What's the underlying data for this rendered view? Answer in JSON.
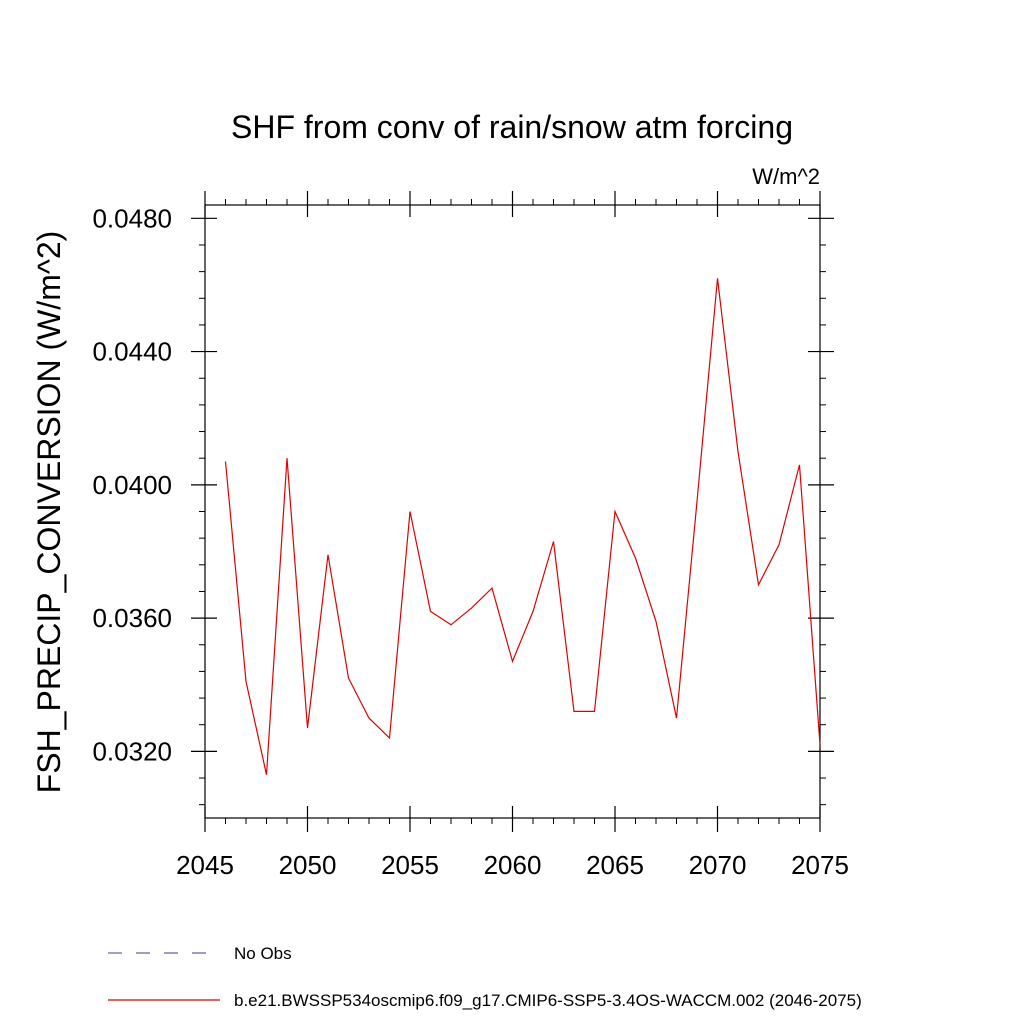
{
  "chart_data": {
    "type": "line",
    "title": "SHF from conv of rain/snow atm forcing",
    "units_label": "W/m^2",
    "xlabel": "",
    "ylabel": "FSH_PRECIP_CONVERSION  (W/m^2)",
    "xlim": [
      2045,
      2075
    ],
    "ylim": [
      0.03,
      0.0484
    ],
    "x_ticks": [
      2045,
      2050,
      2055,
      2060,
      2065,
      2070,
      2075
    ],
    "x_tick_labels": [
      "2045",
      "2050",
      "2055",
      "2060",
      "2065",
      "2070",
      "2075"
    ],
    "y_ticks": [
      0.032,
      0.036,
      0.04,
      0.044,
      0.048
    ],
    "y_tick_labels": [
      "0.0320",
      "0.0360",
      "0.0400",
      "0.0440",
      "0.0480"
    ],
    "grid": false,
    "legend_position": "bottom",
    "series": [
      {
        "name": "No Obs",
        "color": "#6b5ca5",
        "dash": "dashed",
        "x": [],
        "values": []
      },
      {
        "name": "b.e21.BWSSP534oscmip6.f09_g17.CMIP6-SSP5-3.4OS-WACCM.002 (2046-2075)",
        "color": "#e00000",
        "dash": "solid",
        "x": [
          2046,
          2047,
          2048,
          2049,
          2050,
          2051,
          2052,
          2053,
          2054,
          2055,
          2056,
          2057,
          2058,
          2059,
          2060,
          2061,
          2062,
          2063,
          2064,
          2065,
          2066,
          2067,
          2068,
          2069,
          2070,
          2071,
          2072,
          2073,
          2074,
          2075
        ],
        "values": [
          0.0407,
          0.0341,
          0.0313,
          0.0408,
          0.0327,
          0.0379,
          0.0342,
          0.033,
          0.0324,
          0.0392,
          0.0362,
          0.0358,
          0.0363,
          0.0369,
          0.0347,
          0.0362,
          0.0383,
          0.0332,
          0.0332,
          0.0392,
          0.0378,
          0.0359,
          0.033,
          0.0395,
          0.0462,
          0.041,
          0.037,
          0.0382,
          0.0406,
          0.0322
        ]
      }
    ]
  }
}
